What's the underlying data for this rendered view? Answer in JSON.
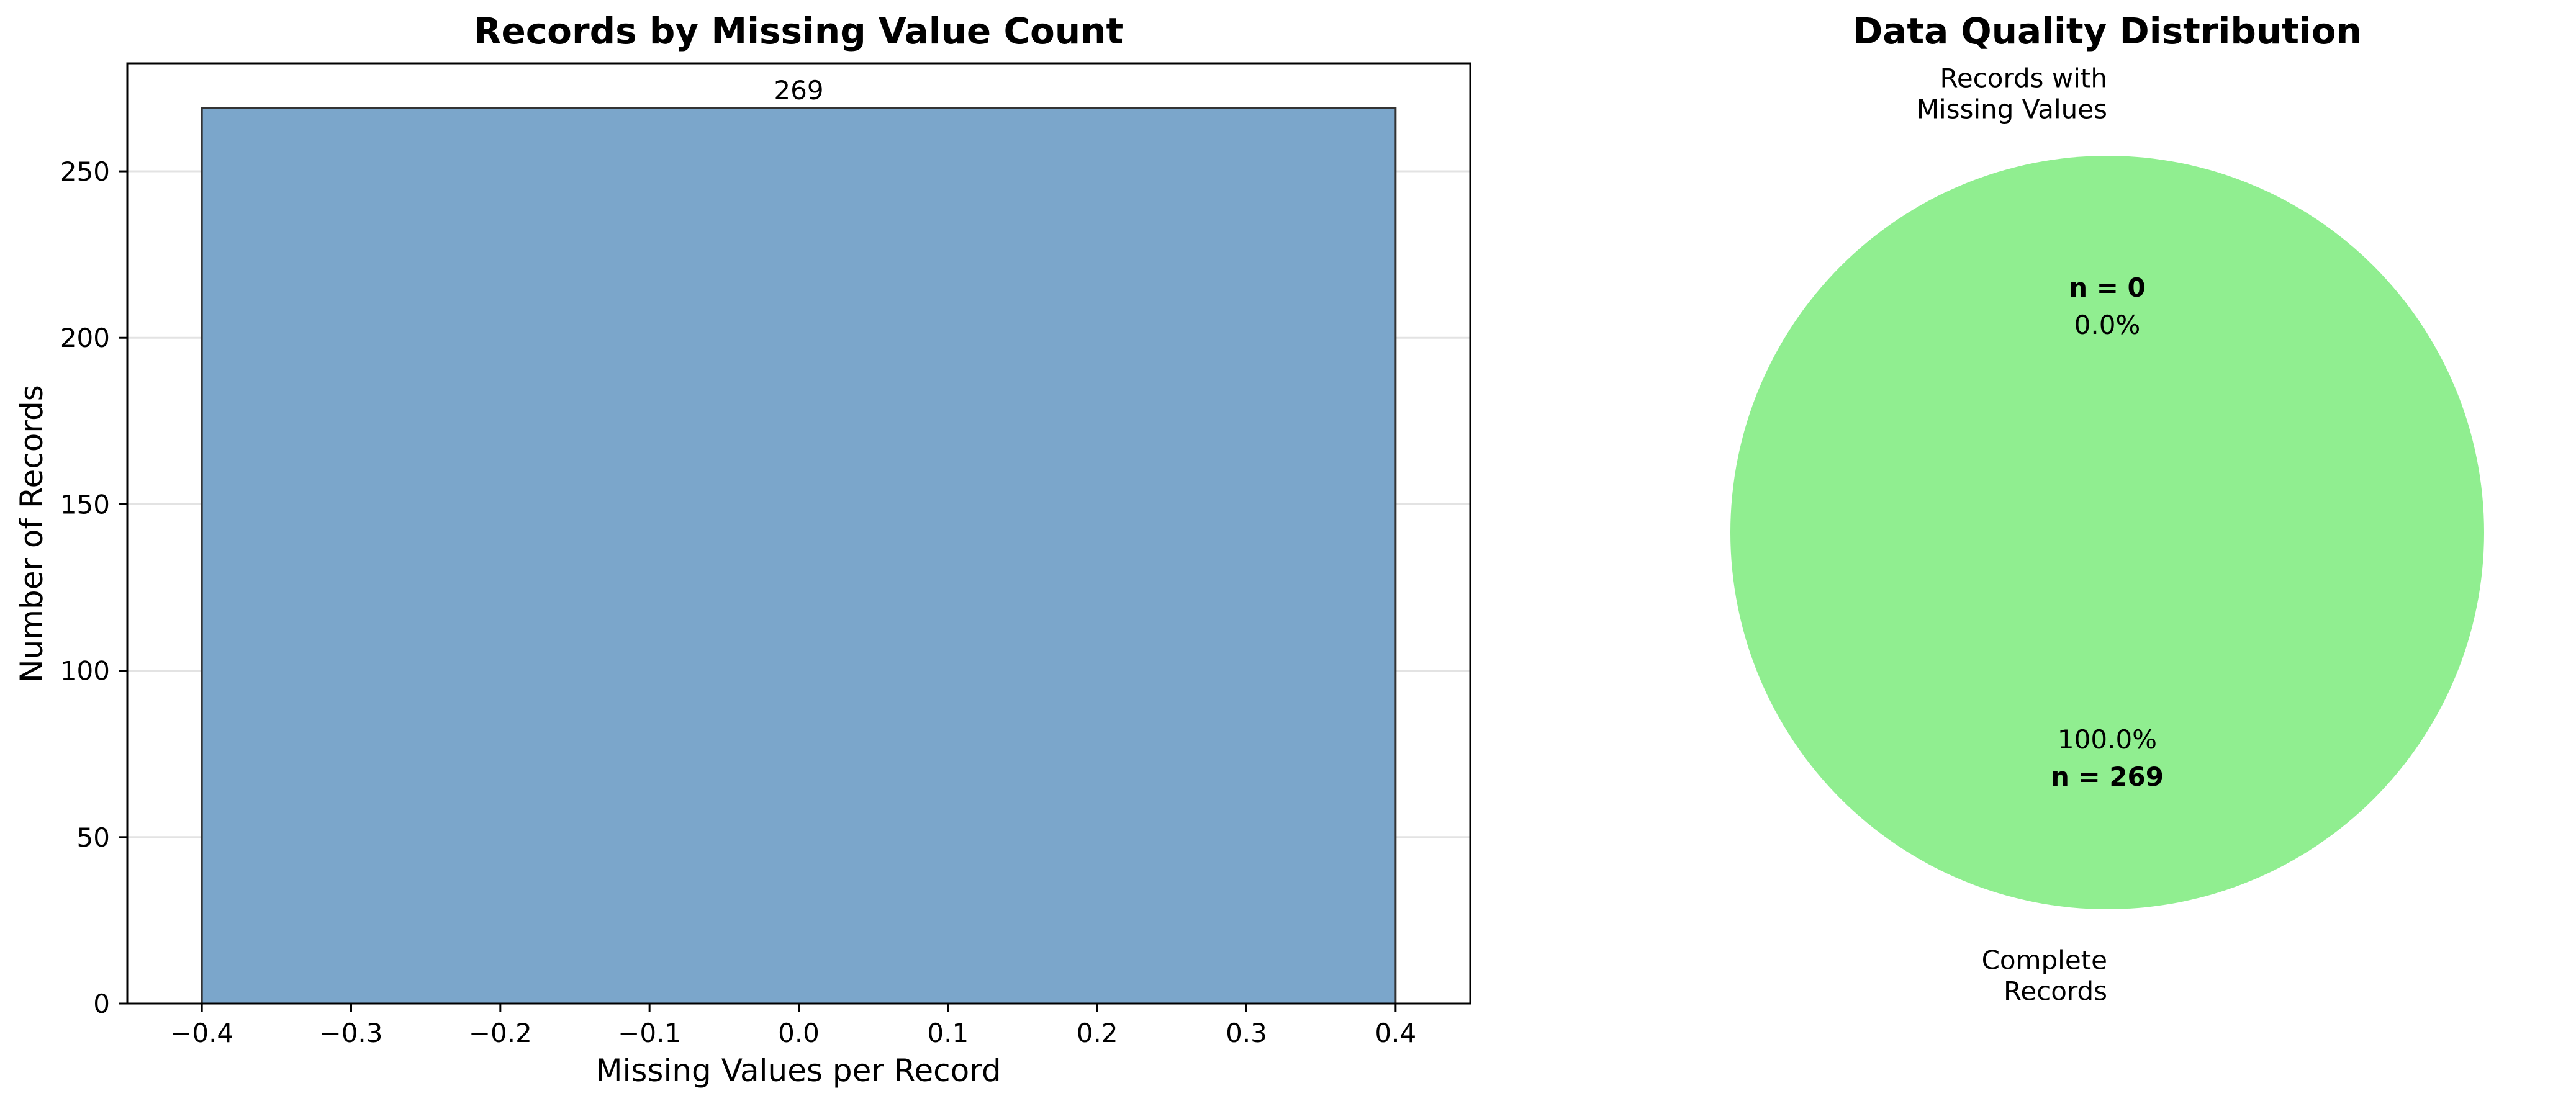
{
  "chart_data": [
    {
      "type": "bar",
      "title": "Records by Missing Value Count",
      "xlabel": "Missing Values per Record",
      "ylabel": "Number of Records",
      "x": [
        0
      ],
      "values": [
        269
      ],
      "bar_width": 0.8,
      "data_labels": [
        "269"
      ],
      "xlim": [
        -0.45,
        0.45
      ],
      "ylim": [
        0,
        282.45
      ],
      "xticks": [
        -0.4,
        -0.3,
        -0.2,
        -0.1,
        0.0,
        0.1,
        0.2,
        0.3,
        0.4
      ],
      "xtick_labels": [
        "−0.4",
        "−0.3",
        "−0.2",
        "−0.1",
        "0.0",
        "0.1",
        "0.2",
        "0.3",
        "0.4"
      ],
      "yticks": [
        0,
        50,
        100,
        150,
        200,
        250
      ],
      "ytick_labels": [
        "0",
        "50",
        "100",
        "150",
        "200",
        "250"
      ],
      "grid": "y",
      "bar_color": "#7ba6cb",
      "edge_color": "#333333"
    },
    {
      "type": "pie",
      "title": "Data Quality Distribution",
      "slices": [
        {
          "label_lines": [
            "Records with",
            "Missing Values"
          ],
          "value": 0,
          "count_label": "n = 0",
          "pct_label": "0.0%",
          "color": "#ff9999"
        },
        {
          "label_lines": [
            "Complete",
            "Records"
          ],
          "value": 269,
          "count_label": "n = 269",
          "pct_label": "100.0%",
          "color": "#90ee90"
        }
      ],
      "start_angle_deg": 90
    }
  ]
}
